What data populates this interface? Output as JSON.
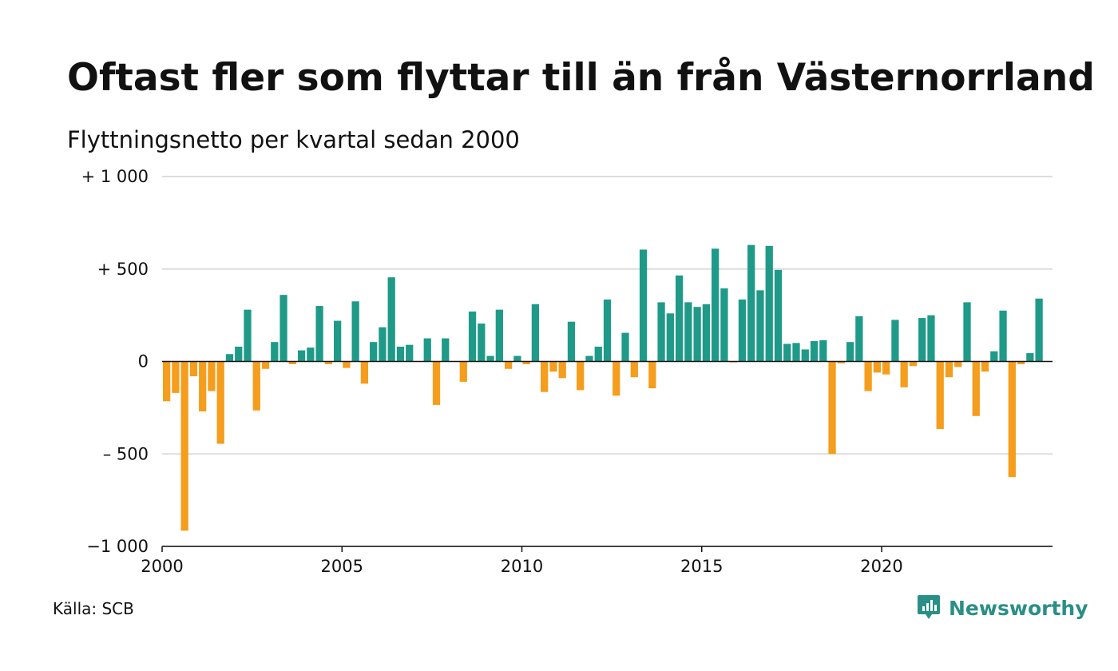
{
  "title": "Oftast fler som flyttar till än från Västernorrland",
  "subtitle": "Flyttningsnetto per kvartal sedan 2000",
  "source": "Källa: SCB",
  "brand": "Newsworthy",
  "colors": {
    "positive": "#1f9a88",
    "negative": "#f59d1c",
    "grid": "#dddddd",
    "axis": "#111111",
    "brand": "#2a8f86"
  },
  "chart_data": {
    "type": "bar",
    "title": "Oftast fler som flyttar till än från Västernorrland",
    "subtitle": "Flyttningsnetto per kvartal sedan 2000",
    "xlabel": "",
    "ylabel": "",
    "ylim": [
      -1000,
      1000
    ],
    "xlim": [
      2000,
      2024.75
    ],
    "grid": true,
    "legend": "none",
    "y_ticks": [
      {
        "value": 1000,
        "label": "+ 1 000"
      },
      {
        "value": 500,
        "label": "+   500"
      },
      {
        "value": 0,
        "label": "0"
      },
      {
        "value": -500,
        "label": "–  500"
      },
      {
        "value": -1000,
        "label": "−1 000"
      }
    ],
    "x_ticks": [
      {
        "value": 2000,
        "label": "2000"
      },
      {
        "value": 2005,
        "label": "2005"
      },
      {
        "value": 2010,
        "label": "2010"
      },
      {
        "value": 2015,
        "label": "2015"
      },
      {
        "value": 2020,
        "label": "2020"
      }
    ],
    "categories": [
      "2000 K1",
      "2000 K2",
      "2000 K3",
      "2000 K4",
      "2001 K1",
      "2001 K2",
      "2001 K3",
      "2001 K4",
      "2002 K1",
      "2002 K2",
      "2002 K3",
      "2002 K4",
      "2003 K1",
      "2003 K2",
      "2003 K3",
      "2003 K4",
      "2004 K1",
      "2004 K2",
      "2004 K3",
      "2004 K4",
      "2005 K1",
      "2005 K2",
      "2005 K3",
      "2005 K4",
      "2006 K1",
      "2006 K2",
      "2006 K3",
      "2006 K4",
      "2007 K1",
      "2007 K2",
      "2007 K3",
      "2007 K4",
      "2008 K1",
      "2008 K2",
      "2008 K3",
      "2008 K4",
      "2009 K1",
      "2009 K2",
      "2009 K3",
      "2009 K4",
      "2010 K1",
      "2010 K2",
      "2010 K3",
      "2010 K4",
      "2011 K1",
      "2011 K2",
      "2011 K3",
      "2011 K4",
      "2012 K1",
      "2012 K2",
      "2012 K3",
      "2012 K4",
      "2013 K1",
      "2013 K2",
      "2013 K3",
      "2013 K4",
      "2014 K1",
      "2014 K2",
      "2014 K3",
      "2014 K4",
      "2015 K1",
      "2015 K2",
      "2015 K3",
      "2015 K4",
      "2016 K1",
      "2016 K2",
      "2016 K3",
      "2016 K4",
      "2017 K1",
      "2017 K2",
      "2017 K3",
      "2017 K4",
      "2018 K1",
      "2018 K2",
      "2018 K3",
      "2018 K4",
      "2019 K1",
      "2019 K2",
      "2019 K3",
      "2019 K4",
      "2020 K1",
      "2020 K2",
      "2020 K3",
      "2020 K4",
      "2021 K1",
      "2021 K2",
      "2021 K3",
      "2021 K4",
      "2022 K1",
      "2022 K2",
      "2022 K3",
      "2022 K4",
      "2023 K1",
      "2023 K2",
      "2023 K3",
      "2023 K4",
      "2024 K1",
      "2024 K2",
      "2024 K3"
    ],
    "values": [
      -215,
      -170,
      -915,
      -80,
      -270,
      -160,
      -445,
      40,
      80,
      280,
      -265,
      -40,
      105,
      360,
      -15,
      60,
      75,
      300,
      -15,
      220,
      -35,
      325,
      -120,
      105,
      185,
      455,
      80,
      90,
      0,
      125,
      -235,
      125,
      0,
      -110,
      270,
      205,
      30,
      280,
      -40,
      30,
      -15,
      310,
      -165,
      -55,
      -90,
      215,
      -155,
      30,
      80,
      335,
      -185,
      155,
      -85,
      605,
      -145,
      320,
      260,
      465,
      320,
      295,
      310,
      610,
      395,
      -5,
      335,
      630,
      385,
      625,
      495,
      95,
      100,
      65,
      110,
      115,
      -500,
      -10,
      105,
      245,
      -160,
      -60,
      -70,
      225,
      -140,
      -25,
      235,
      250,
      -365,
      -85,
      -30,
      320,
      -295,
      -55,
      55,
      275,
      -625,
      -15,
      45,
      340,
      0
    ]
  }
}
